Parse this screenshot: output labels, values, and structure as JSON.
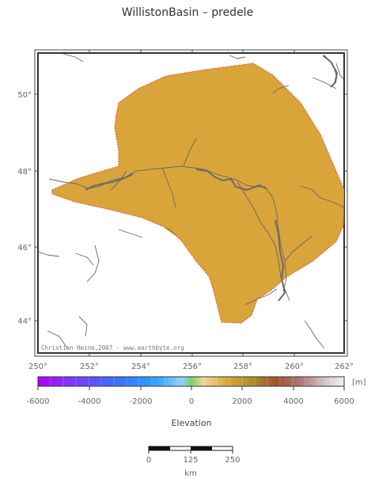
{
  "title": "WillistonBasin – predele",
  "credit": "Christian Heine,2007 - www.earthbyte.org",
  "lat_labels": [
    "50°",
    "48°",
    "46°",
    "44°"
  ],
  "lon_labels": [
    "250°",
    "252°",
    "254°",
    "256°",
    "258°",
    "260°",
    "262°"
  ],
  "colorbar": {
    "unit": "[m]",
    "ticks": [
      "-6000",
      "-4000",
      "-2000",
      "0",
      "2000",
      "4000",
      "6000"
    ],
    "label": "Elevation"
  },
  "scalebar": {
    "ticks": [
      "0",
      "125",
      "250"
    ],
    "unit": "km"
  },
  "colors": {
    "basin_light": "#f2cb8a",
    "basin_mid": "#e8b45a",
    "basin_orange": "#d9a53a",
    "basin_olive": "#b89a2c",
    "basin_dark": "#9f8d2a",
    "outline": "#e0623a",
    "river": "#666666"
  }
}
